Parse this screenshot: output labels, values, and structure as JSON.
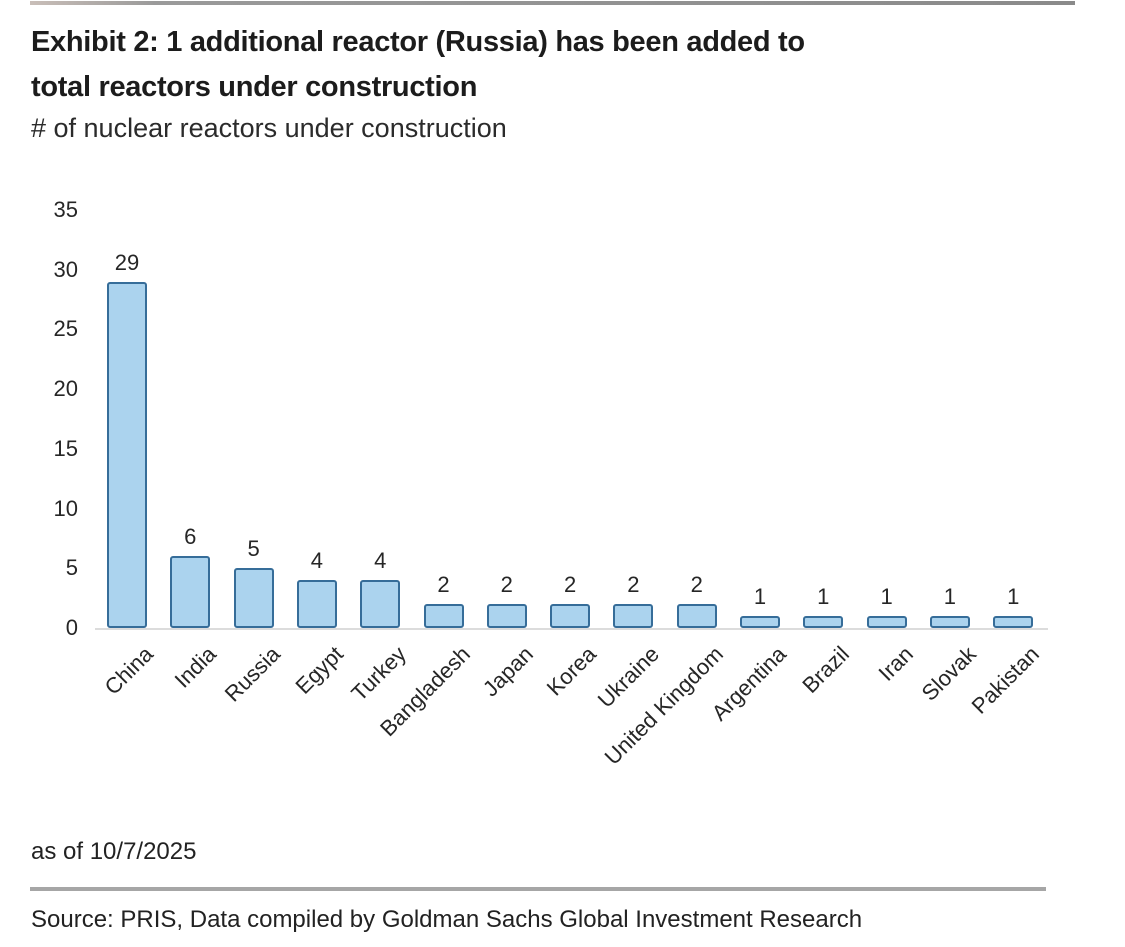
{
  "page": {
    "title_line1": "Exhibit 2: 1 additional reactor (Russia) has been added to",
    "title_line2": "total reactors under construction",
    "subtitle": "# of nuclear reactors under construction",
    "as_of": "as of 10/7/2025",
    "source": "Source: PRIS, Data compiled by Goldman Sachs Global Investment Research"
  },
  "colors": {
    "bar_fill": "#abd3ee",
    "bar_border": "#366d99",
    "axis_line": "#dcdcdc",
    "text": "#262626",
    "top_rule": "#8a8a8a",
    "footer_rule": "#a6a6a6"
  },
  "chart_data": {
    "type": "bar",
    "title": "Exhibit 2: 1 additional reactor (Russia) has been added to total reactors under construction",
    "subtitle": "# of nuclear reactors under construction",
    "categories": [
      "China",
      "India",
      "Russia",
      "Egypt",
      "Turkey",
      "Bangladesh",
      "Japan",
      "Korea",
      "Ukraine",
      "United Kingdom",
      "Argentina",
      "Brazil",
      "Iran",
      "Slovak",
      "Pakistan"
    ],
    "values": [
      29,
      6,
      5,
      4,
      4,
      2,
      2,
      2,
      2,
      2,
      1,
      1,
      1,
      1,
      1
    ],
    "xlabel": "",
    "ylabel": "# of nuclear reactors under construction",
    "ylim": [
      0,
      35
    ],
    "yticks": [
      0,
      5,
      10,
      15,
      20,
      25,
      30,
      35
    ],
    "grid": false,
    "legend": false,
    "data_labels": true,
    "x_label_rotation_deg": 45
  }
}
